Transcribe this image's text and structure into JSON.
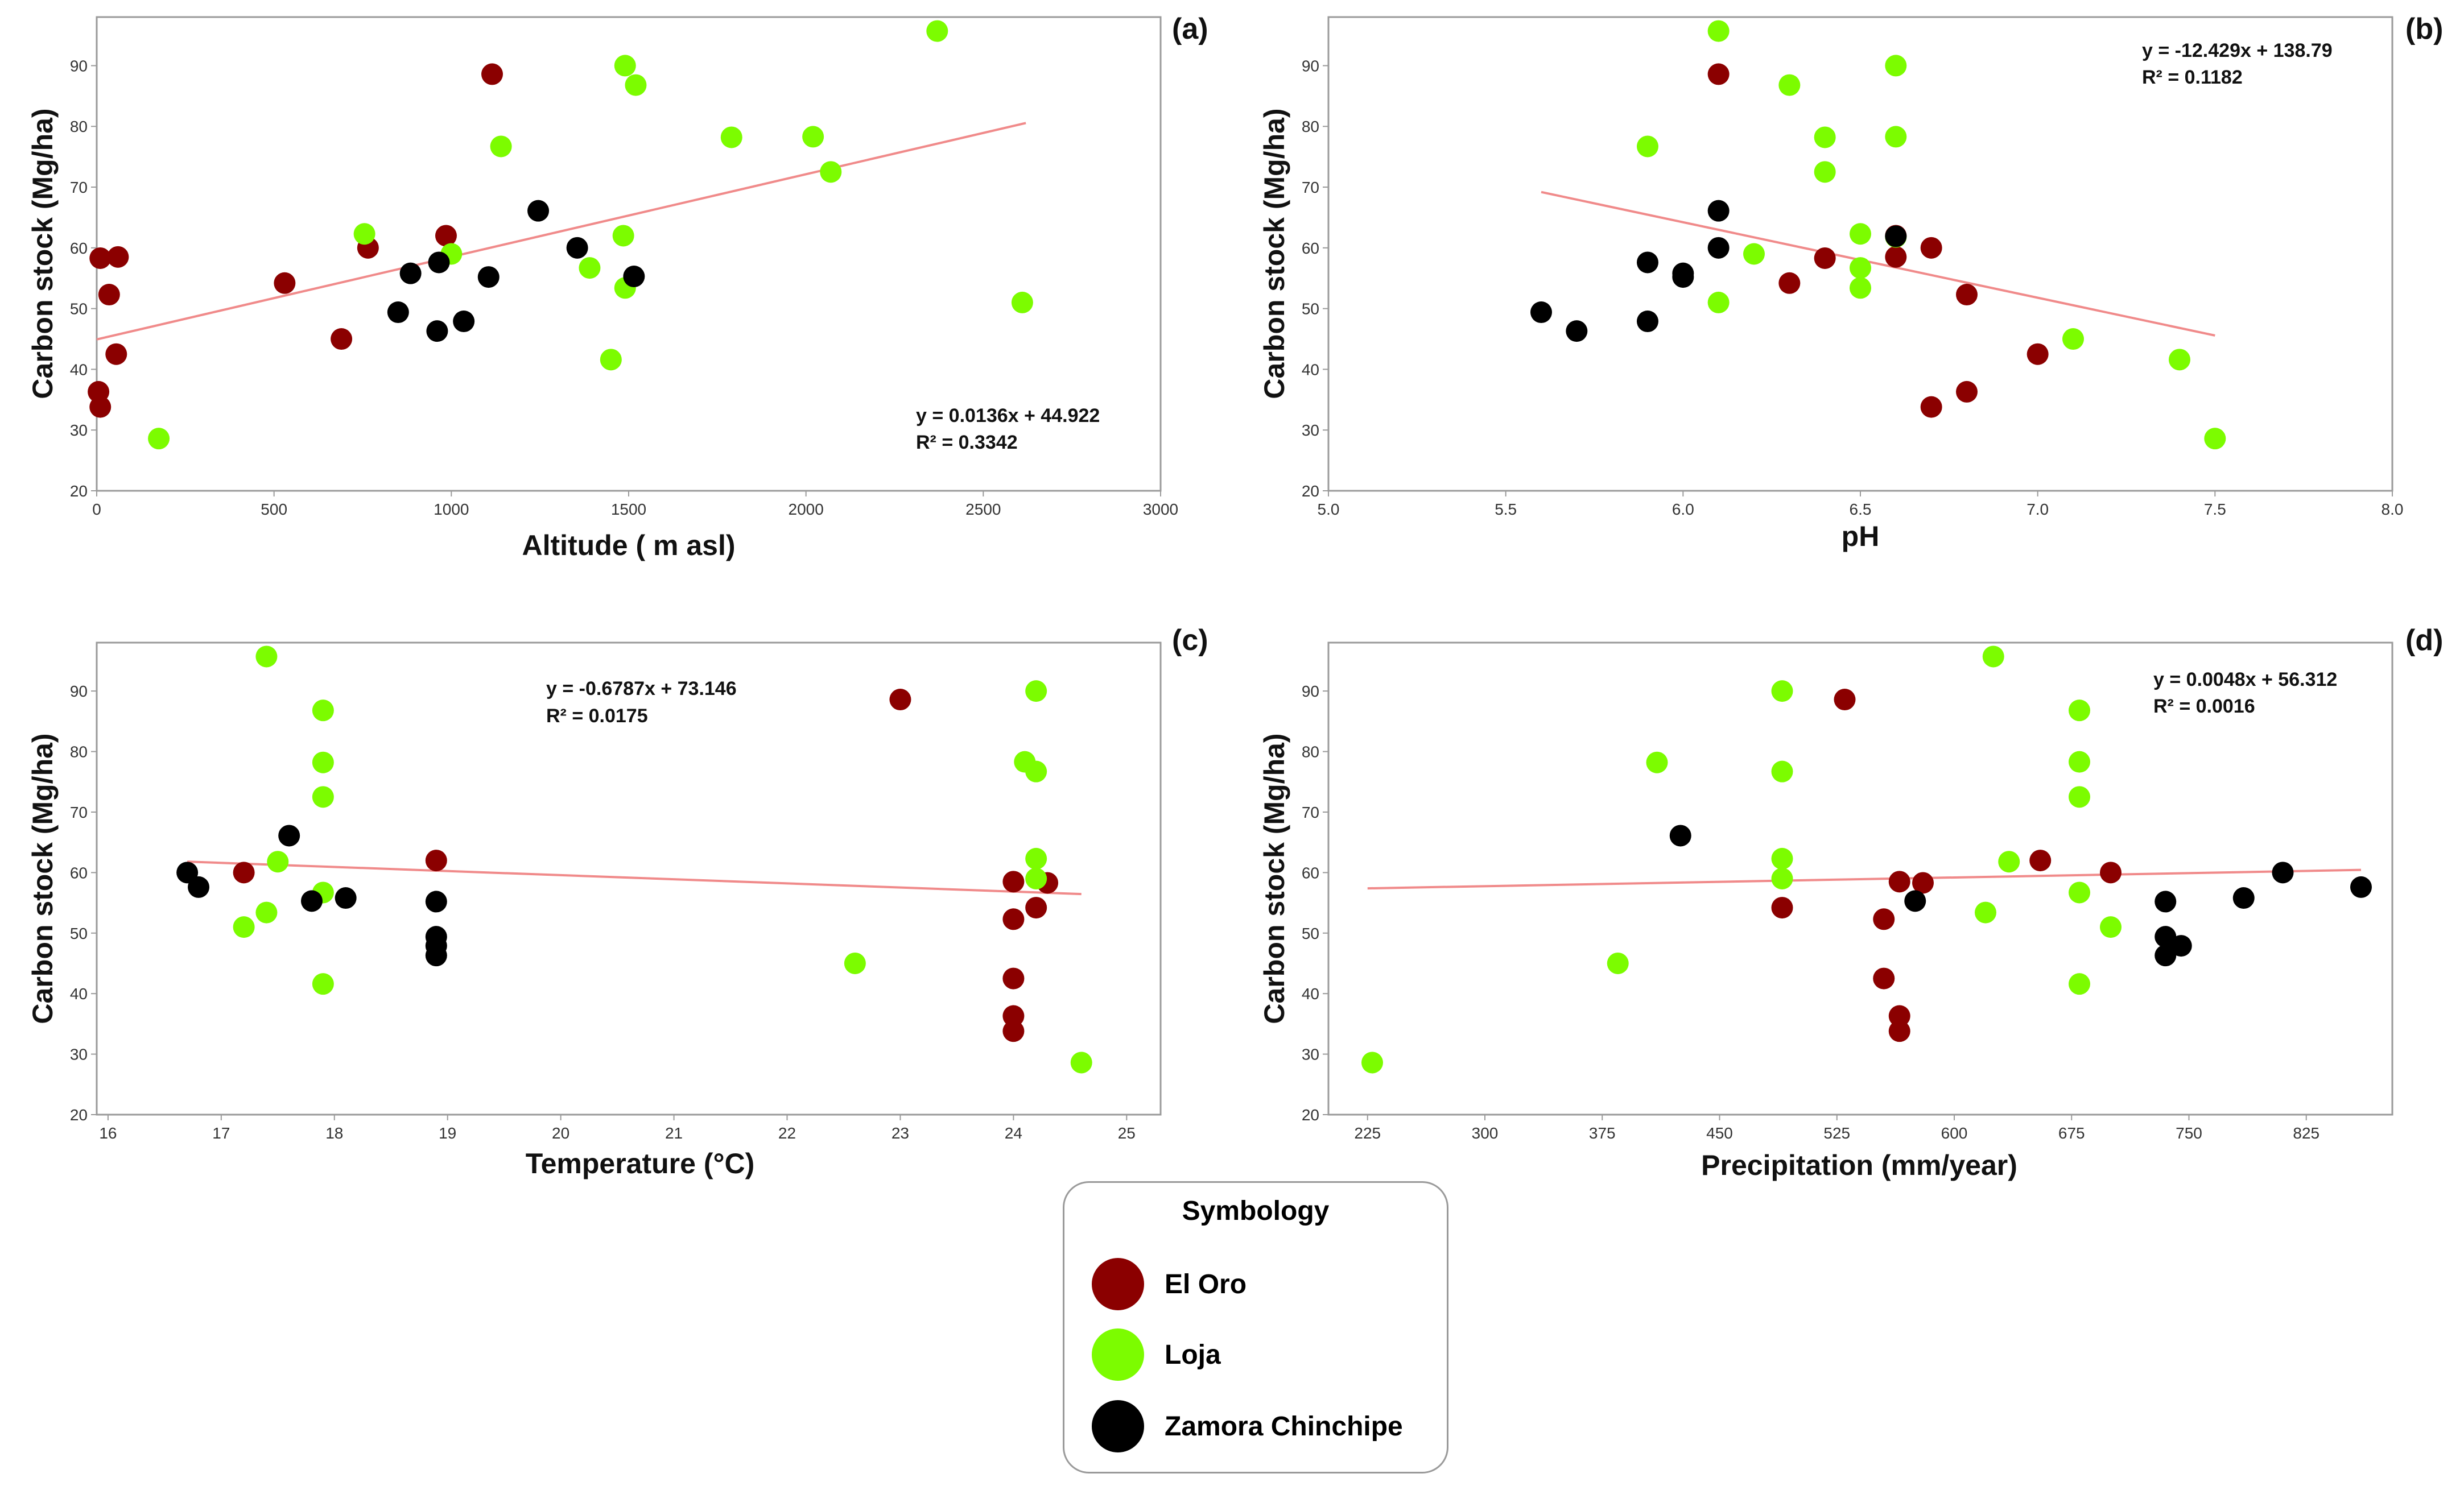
{
  "colors": {
    "el_oro": "#8b0000",
    "loja": "#7cfc00",
    "zamora_chinchipe": "#000000",
    "trendline": "#f08a8a"
  },
  "legend": {
    "title": "Symbology",
    "items": [
      {
        "label": "El Oro",
        "color_key": "el_oro"
      },
      {
        "label": "Loja",
        "color_key": "loja"
      },
      {
        "label": "Zamora Chinchipe",
        "color_key": "zamora_chinchipe"
      }
    ]
  },
  "chart_data": [
    {
      "type": "scatter",
      "panel": "(a)",
      "xlabel": "Altitude ( m asl)",
      "ylabel": "Carbon stock (Mg/ha)",
      "xlim": [
        0,
        3000
      ],
      "ylim": [
        20,
        98
      ],
      "xticks": [
        0,
        500,
        1000,
        1500,
        2000,
        2500,
        3000
      ],
      "yticks": [
        20,
        30,
        40,
        50,
        60,
        70,
        80,
        90
      ],
      "equation": "y = 0.0136x + 44.922",
      "r2": "R² = 0.3342",
      "trendline": {
        "slope": 0.0136,
        "intercept": 44.922,
        "x_range": [
          0,
          2620
        ]
      },
      "series": [
        {
          "name": "El Oro",
          "points": [
            [
              10,
              58.3
            ],
            [
              60,
              58.5
            ],
            [
              35,
              52.3
            ],
            [
              55,
              42.5
            ],
            [
              5,
              36.3
            ],
            [
              10,
              33.8
            ],
            [
              530,
              54.2
            ],
            [
              690,
              45
            ],
            [
              765,
              60
            ],
            [
              985,
              62
            ],
            [
              1115,
              88.6
            ]
          ]
        },
        {
          "name": "Loja",
          "points": [
            [
              175,
              28.6
            ],
            [
              755,
              62.3
            ],
            [
              1000,
              59
            ],
            [
              1140,
              76.7
            ],
            [
              1390,
              56.7
            ],
            [
              1450,
              41.6
            ],
            [
              1490,
              90
            ],
            [
              1485,
              62
            ],
            [
              1490,
              53.4
            ],
            [
              1520,
              86.8
            ],
            [
              1790,
              78.2
            ],
            [
              2020,
              78.3
            ],
            [
              2070,
              72.5
            ],
            [
              2370,
              95.7
            ],
            [
              2610,
              51
            ]
          ]
        },
        {
          "name": "Zamora Chinchipe",
          "points": [
            [
              850,
              49.4
            ],
            [
              885,
              55.8
            ],
            [
              960,
              46.3
            ],
            [
              965,
              57.6
            ],
            [
              1035,
              47.9
            ],
            [
              1105,
              55.2
            ],
            [
              1245,
              66.1
            ],
            [
              1355,
              60
            ],
            [
              1515,
              55.3
            ]
          ]
        }
      ]
    },
    {
      "type": "scatter",
      "panel": "(b)",
      "xlabel": "pH",
      "ylabel": "Carbon stock (Mg/ha)",
      "xlim": [
        5.0,
        8.0
      ],
      "ylim": [
        20,
        98
      ],
      "xticks": [
        "5.0",
        "5.5",
        "6.0",
        "6.5",
        "7.0",
        "7.5",
        "8.0"
      ],
      "yticks": [
        20,
        30,
        40,
        50,
        60,
        70,
        80,
        90
      ],
      "equation": "y = -12.429x + 138.79",
      "r2": "R² = 0.1182",
      "trendline": {
        "slope": -12.429,
        "intercept": 138.79,
        "x_range": [
          5.6,
          7.5
        ]
      },
      "series": [
        {
          "name": "El Oro",
          "points": [
            [
              6.1,
              88.6
            ],
            [
              6.3,
              54.2
            ],
            [
              6.4,
              58.3
            ],
            [
              6.6,
              58.5
            ],
            [
              6.6,
              62
            ],
            [
              6.7,
              60
            ],
            [
              6.8,
              52.3
            ],
            [
              6.8,
              36.3
            ],
            [
              6.7,
              33.8
            ],
            [
              7.0,
              42.5
            ]
          ]
        },
        {
          "name": "Loja",
          "points": [
            [
              6.1,
              95.7
            ],
            [
              5.9,
              76.7
            ],
            [
              6.3,
              86.8
            ],
            [
              6.4,
              78.2
            ],
            [
              6.4,
              72.5
            ],
            [
              6.6,
              90
            ],
            [
              6.6,
              78.3
            ],
            [
              6.5,
              62.3
            ],
            [
              6.6,
              61.8
            ],
            [
              6.2,
              59
            ],
            [
              6.5,
              56.7
            ],
            [
              6.5,
              53.4
            ],
            [
              6.1,
              51
            ],
            [
              7.1,
              45
            ],
            [
              7.4,
              41.6
            ],
            [
              7.5,
              28.6
            ]
          ]
        },
        {
          "name": "Zamora Chinchipe",
          "points": [
            [
              5.6,
              49.4
            ],
            [
              5.7,
              46.3
            ],
            [
              5.9,
              57.6
            ],
            [
              5.9,
              47.9
            ],
            [
              6.0,
              55.8
            ],
            [
              6.0,
              55.2
            ],
            [
              6.1,
              66.1
            ],
            [
              6.1,
              60
            ],
            [
              6.6,
              61.9
            ]
          ]
        }
      ]
    },
    {
      "type": "scatter",
      "panel": "(c)",
      "xlabel": "Temperature (°C)",
      "ylabel": "Carbon stock (Mg/ha)",
      "xlim": [
        15.9,
        25.3
      ],
      "ylim": [
        20,
        98
      ],
      "xticks": [
        16,
        17,
        18,
        19,
        20,
        21,
        22,
        23,
        24,
        25
      ],
      "yticks": [
        20,
        30,
        40,
        50,
        60,
        70,
        80,
        90
      ],
      "equation": "y = -0.6787x + 73.146",
      "r2": "R² = 0.0175",
      "trendline": {
        "slope": -0.6787,
        "intercept": 73.146,
        "x_range": [
          16.7,
          24.6
        ]
      },
      "series": [
        {
          "name": "El Oro",
          "points": [
            [
              17.2,
              60
            ],
            [
              18.9,
              62
            ],
            [
              23.0,
              88.6
            ],
            [
              24.0,
              58.5
            ],
            [
              24.3,
              58.3
            ],
            [
              24.2,
              54.2
            ],
            [
              24.0,
              52.3
            ],
            [
              24.0,
              42.5
            ],
            [
              24.0,
              36.3
            ],
            [
              24.0,
              33.8
            ]
          ]
        },
        {
          "name": "Loja",
          "points": [
            [
              17.4,
              95.7
            ],
            [
              17.9,
              86.8
            ],
            [
              17.9,
              78.2
            ],
            [
              17.9,
              72.5
            ],
            [
              17.5,
              61.8
            ],
            [
              17.9,
              56.7
            ],
            [
              17.4,
              53.4
            ],
            [
              17.2,
              51
            ],
            [
              17.9,
              41.6
            ],
            [
              22.6,
              45
            ],
            [
              24.2,
              90
            ],
            [
              24.1,
              78.3
            ],
            [
              24.2,
              76.7
            ],
            [
              24.2,
              62.3
            ],
            [
              24.2,
              59
            ],
            [
              24.6,
              28.6
            ]
          ]
        },
        {
          "name": "Zamora Chinchipe",
          "points": [
            [
              16.7,
              60
            ],
            [
              16.8,
              57.6
            ],
            [
              17.6,
              66.1
            ],
            [
              17.8,
              55.3
            ],
            [
              18.1,
              55.8
            ],
            [
              18.9,
              55.2
            ],
            [
              18.9,
              49.4
            ],
            [
              18.9,
              47.9
            ],
            [
              18.9,
              46.3
            ]
          ]
        }
      ]
    },
    {
      "type": "scatter",
      "panel": "(d)",
      "xlabel": "Precipitation (mm/year)",
      "ylabel": "Carbon stock (Mg/ha)",
      "xlim": [
        200,
        880
      ],
      "ylim": [
        20,
        98
      ],
      "xticks": [
        225,
        300,
        375,
        450,
        525,
        600,
        675,
        750,
        825
      ],
      "yticks": [
        20,
        30,
        40,
        50,
        60,
        70,
        80,
        90
      ],
      "equation": "y = 0.0048x + 56.312",
      "r2": "R² = 0.0016",
      "trendline": {
        "slope": 0.0048,
        "intercept": 56.312,
        "x_range": [
          225,
          860
        ]
      },
      "series": [
        {
          "name": "El Oro",
          "points": [
            [
              530,
              88.6
            ],
            [
              490,
              54.2
            ],
            [
              555,
              52.3
            ],
            [
              555,
              42.5
            ],
            [
              565,
              58.5
            ],
            [
              580,
              58.3
            ],
            [
              565,
              36.3
            ],
            [
              565,
              33.8
            ],
            [
              655,
              62
            ],
            [
              700,
              60
            ]
          ]
        },
        {
          "name": "Loja",
          "points": [
            [
              228,
              28.6
            ],
            [
              385,
              45
            ],
            [
              410,
              78.2
            ],
            [
              490,
              90
            ],
            [
              490,
              76.7
            ],
            [
              490,
              62.3
            ],
            [
              490,
              59
            ],
            [
              620,
              53.4
            ],
            [
              625,
              95.7
            ],
            [
              635,
              61.8
            ],
            [
              680,
              86.8
            ],
            [
              680,
              78.3
            ],
            [
              680,
              72.5
            ],
            [
              680,
              56.7
            ],
            [
              700,
              51
            ],
            [
              680,
              41.6
            ]
          ]
        },
        {
          "name": "Zamora Chinchipe",
          "points": [
            [
              425,
              66.1
            ],
            [
              575,
              55.3
            ],
            [
              735,
              55.2
            ],
            [
              735,
              49.4
            ],
            [
              735,
              46.3
            ],
            [
              745,
              47.9
            ],
            [
              785,
              55.8
            ],
            [
              810,
              60
            ],
            [
              860,
              57.6
            ]
          ]
        }
      ]
    }
  ]
}
